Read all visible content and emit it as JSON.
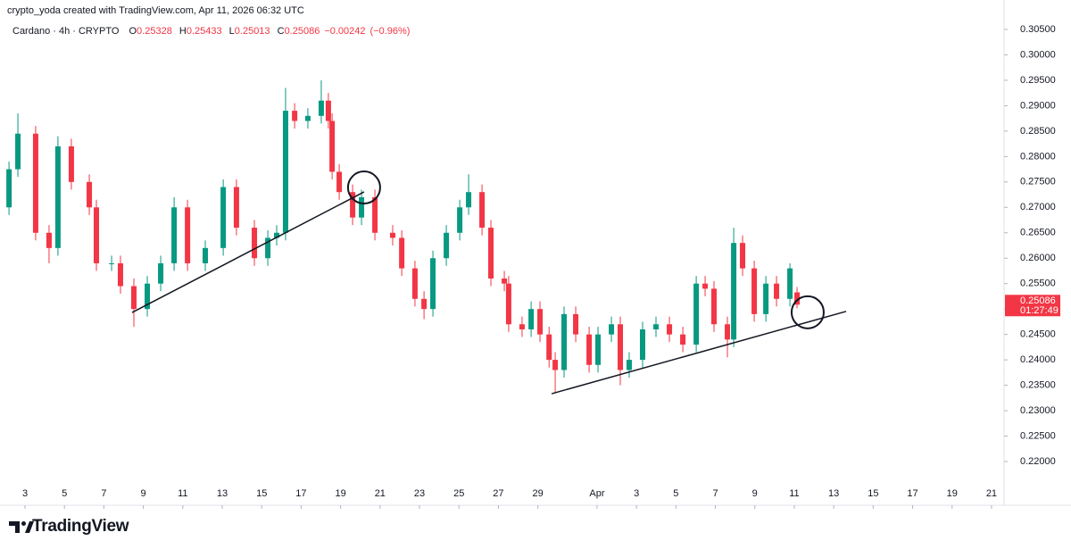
{
  "header": {
    "attribution": "crypto_yoda created with TradingView.com, Apr 11, 2026 06:32 UTC"
  },
  "chart_data": {
    "type": "candlestick",
    "symbol": "Cardano · 4h · CRYPTO",
    "legend": {
      "open_label": "O",
      "open": 0.25328,
      "high_label": "H",
      "high": 0.25433,
      "low_label": "L",
      "low": 0.25013,
      "close_label": "C",
      "close": 0.25086,
      "change": {
        "value": -0.00242,
        "label": "−0.00242"
      },
      "change_percent": {
        "value": -0.96,
        "label": "(−0.96%)"
      }
    },
    "x": [
      2.19,
      2.64,
      3.54,
      4.22,
      4.67,
      5.35,
      6.26,
      6.62,
      7.39,
      7.84,
      8.52,
      9.2,
      9.88,
      10.56,
      11.24,
      12.14,
      13.05,
      13.72,
      14.63,
      15.31,
      15.76,
      16.21,
      16.67,
      17.34,
      18.02,
      18.38,
      18.57,
      18.93,
      19.61,
      20.06,
      20.74,
      21.64,
      22.1,
      22.77,
      23.23,
      23.68,
      24.36,
      25.04,
      25.49,
      26.17,
      26.62,
      27.3,
      27.52,
      28.2,
      28.66,
      29.11,
      29.57,
      29.88,
      30.33,
      30.92,
      31.6,
      32.05,
      32.73,
      33.18,
      33.63,
      34.31,
      34.99,
      35.67,
      36.35,
      37.03,
      37.48,
      37.93,
      38.61,
      38.93,
      39.38,
      39.97,
      40.56,
      41.1,
      41.78,
      42.14
    ],
    "open": [
      0.27,
      0.2775,
      0.2845,
      0.265,
      0.262,
      0.282,
      0.275,
      0.27,
      0.259,
      0.259,
      0.2545,
      0.25,
      0.255,
      0.259,
      0.27,
      0.259,
      0.262,
      0.274,
      0.266,
      0.26,
      0.264,
      0.265,
      0.289,
      0.287,
      0.288,
      0.291,
      0.287,
      0.277,
      0.273,
      0.268,
      0.272,
      0.265,
      0.264,
      0.258,
      0.252,
      0.25,
      0.26,
      0.265,
      0.27,
      0.273,
      0.266,
      0.256,
      0.255,
      0.247,
      0.246,
      0.25,
      0.245,
      0.24,
      0.238,
      0.249,
      0.245,
      0.239,
      0.245,
      0.247,
      0.238,
      0.24,
      0.246,
      0.247,
      0.245,
      0.243,
      0.255,
      0.254,
      0.247,
      0.244,
      0.263,
      0.258,
      0.249,
      0.255,
      0.252,
      0.25328
    ],
    "high": [
      0.279,
      0.2885,
      0.286,
      0.2665,
      0.284,
      0.2835,
      0.2765,
      0.2715,
      0.2605,
      0.2605,
      0.256,
      0.2565,
      0.2605,
      0.272,
      0.2715,
      0.2635,
      0.2755,
      0.2755,
      0.2675,
      0.2655,
      0.2665,
      0.2935,
      0.2905,
      0.2895,
      0.295,
      0.2925,
      0.2885,
      0.2785,
      0.2745,
      0.2735,
      0.2735,
      0.2665,
      0.2655,
      0.2595,
      0.2535,
      0.2615,
      0.2665,
      0.2715,
      0.2765,
      0.2745,
      0.2675,
      0.2575,
      0.2565,
      0.2485,
      0.2515,
      0.2515,
      0.2465,
      0.2415,
      0.2505,
      0.2505,
      0.2465,
      0.2465,
      0.2485,
      0.2485,
      0.2415,
      0.2475,
      0.2485,
      0.2485,
      0.2465,
      0.2565,
      0.2565,
      0.2555,
      0.2485,
      0.266,
      0.2645,
      0.2595,
      0.2565,
      0.2565,
      0.259,
      0.25433
    ],
    "low": [
      0.2685,
      0.276,
      0.2635,
      0.259,
      0.2605,
      0.2735,
      0.2685,
      0.2575,
      0.2575,
      0.253,
      0.2465,
      0.2485,
      0.2535,
      0.2575,
      0.2575,
      0.2575,
      0.2605,
      0.2645,
      0.2585,
      0.2585,
      0.2625,
      0.2635,
      0.2855,
      0.2855,
      0.2865,
      0.2855,
      0.2755,
      0.2715,
      0.2665,
      0.2665,
      0.2635,
      0.2625,
      0.2565,
      0.2505,
      0.248,
      0.2485,
      0.2585,
      0.2635,
      0.2685,
      0.2645,
      0.2545,
      0.2535,
      0.2455,
      0.2445,
      0.2445,
      0.2435,
      0.2385,
      0.2335,
      0.2365,
      0.2435,
      0.2375,
      0.2375,
      0.2435,
      0.235,
      0.2365,
      0.2385,
      0.2445,
      0.2435,
      0.2415,
      0.2415,
      0.2525,
      0.2455,
      0.2405,
      0.2425,
      0.2565,
      0.2475,
      0.2475,
      0.2505,
      0.2505,
      0.25013
    ],
    "close": [
      0.2775,
      0.2845,
      0.265,
      0.262,
      0.282,
      0.275,
      0.27,
      0.259,
      0.259,
      0.2545,
      0.25,
      0.255,
      0.259,
      0.27,
      0.259,
      0.262,
      0.274,
      0.266,
      0.26,
      0.264,
      0.265,
      0.289,
      0.287,
      0.288,
      0.291,
      0.287,
      0.277,
      0.273,
      0.268,
      0.272,
      0.265,
      0.264,
      0.258,
      0.252,
      0.25,
      0.26,
      0.265,
      0.27,
      0.273,
      0.266,
      0.256,
      0.255,
      0.247,
      0.246,
      0.25,
      0.245,
      0.24,
      0.238,
      0.249,
      0.245,
      0.239,
      0.245,
      0.247,
      0.238,
      0.24,
      0.246,
      0.247,
      0.245,
      0.243,
      0.255,
      0.254,
      0.247,
      0.244,
      0.263,
      0.258,
      0.249,
      0.255,
      0.252,
      0.258,
      0.25086
    ],
    "up_color": "#089981",
    "down_color": "#f23645",
    "xlim": [
      2.095,
      52.5
    ],
    "xticks": [
      3,
      5,
      7,
      9,
      11,
      13,
      15,
      17,
      19,
      21,
      23,
      25,
      27,
      29,
      {
        "value": 32,
        "label": "Apr"
      },
      {
        "value": 34,
        "label": "3"
      },
      {
        "value": 36,
        "label": "5"
      },
      {
        "value": 38,
        "label": "7"
      },
      {
        "value": 40,
        "label": "9"
      },
      {
        "value": 42,
        "label": "11"
      },
      {
        "value": 44,
        "label": "13"
      },
      {
        "value": 46,
        "label": "15"
      },
      {
        "value": 48,
        "label": "17"
      },
      {
        "value": 50,
        "label": "19"
      },
      {
        "value": 52,
        "label": "21"
      }
    ],
    "ylim": [
      0.21596,
      0.30693
    ],
    "yticks": [
      {
        "value": 0.22,
        "label": "0.22000"
      },
      {
        "value": 0.225,
        "label": "0.22500"
      },
      {
        "value": 0.23,
        "label": "0.23000"
      },
      {
        "value": 0.235,
        "label": "0.23500"
      },
      {
        "value": 0.24,
        "label": "0.24000"
      },
      {
        "value": 0.245,
        "label": "0.24500"
      },
      {
        "value": 0.25,
        "label": "0.25000"
      },
      {
        "value": 0.255,
        "label": "0.25500"
      },
      {
        "value": 0.26,
        "label": "0.26000"
      },
      {
        "value": 0.265,
        "label": "0.26500"
      },
      {
        "value": 0.27,
        "label": "0.27000"
      },
      {
        "value": 0.275,
        "label": "0.27500"
      },
      {
        "value": 0.28,
        "label": "0.28000"
      },
      {
        "value": 0.285,
        "label": "0.28500"
      },
      {
        "value": 0.29,
        "label": "0.29000"
      },
      {
        "value": 0.295,
        "label": "0.29500"
      },
      {
        "value": 0.3,
        "label": "0.30000"
      },
      {
        "value": 0.305,
        "label": "0.30500"
      }
    ],
    "grid": false,
    "last_price": 0.25086,
    "countdown": "01:27:49",
    "trendlines": [
      {
        "x": [
          8.43,
          20.19
        ],
        "y": [
          0.24931,
          0.27304
        ]
      },
      {
        "x": [
          29.7,
          44.63
        ],
        "y": [
          0.23334,
          0.24954
        ]
      }
    ],
    "circles": [
      {
        "x": 20.19,
        "y": 0.27391
      },
      {
        "x": 42.68,
        "y": 0.24935
      }
    ]
  },
  "footer": {
    "logo_text": "TradingView"
  }
}
